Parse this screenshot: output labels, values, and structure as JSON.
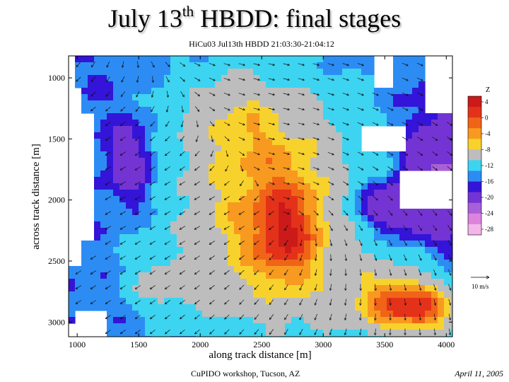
{
  "slide": {
    "title_main": "July 13",
    "title_sup": "th",
    "title_rest": " HBDD: final stages",
    "footer_left": "CuPIDO workshop, Tucson, AZ",
    "footer_right": "April 11, 2005"
  },
  "chart_data": {
    "type": "heatmap",
    "title": "HiCu03 Jul13th HBDD 21:03:30-21:04:12",
    "xlabel": "along track distance [m]",
    "ylabel": "across track distance [m]",
    "xlim": [
      930,
      4050
    ],
    "ylim": [
      3120,
      820
    ],
    "xticks": [
      1000,
      1500,
      2000,
      2500,
      3000,
      3500,
      4000
    ],
    "yticks": [
      1000,
      1500,
      2000,
      2500,
      3000
    ],
    "colorbar": {
      "label": "Z",
      "levels": [
        4,
        0,
        -4,
        -8,
        -12,
        -16,
        -20,
        -24,
        -28
      ],
      "colors": [
        "#cc1a1a",
        "#e4321a",
        "#f06418",
        "#f89a20",
        "#f8d22c",
        "#bdbdbd",
        "#3cd4f0",
        "#2c8cf4",
        "#3414d8",
        "#7434d4",
        "#a860d8",
        "#dc84dc",
        "#f2b6ea"
      ]
    },
    "vector_key": "10 m/s",
    "core": {
      "x": 2700,
      "y": 2150
    },
    "grid": false
  }
}
